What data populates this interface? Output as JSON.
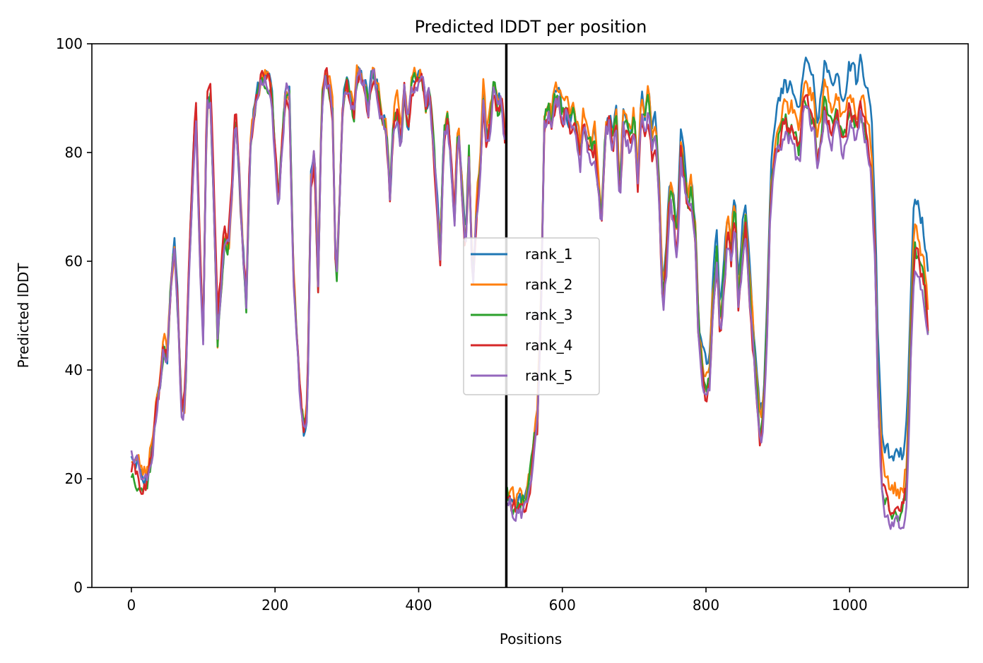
{
  "chart_data": {
    "type": "line",
    "title": "Predicted lDDT per position",
    "xlabel": "Positions",
    "ylabel": "Predicted lDDT",
    "xlim": [
      -55,
      1165
    ],
    "ylim": [
      0,
      100
    ],
    "xticks": [
      0,
      200,
      400,
      600,
      800,
      1000
    ],
    "yticks": [
      0,
      20,
      40,
      60,
      80,
      100
    ],
    "grid": false,
    "legend_position": "center",
    "vline_x": 522,
    "colors": {
      "rank_1": "#1f77b4",
      "rank_2": "#ff7f0e",
      "rank_3": "#2ca02c",
      "rank_4": "#d62728",
      "rank_5": "#9467bd",
      "vline": "#000000"
    },
    "base_profile": [
      [
        0,
        24
      ],
      [
        5,
        23
      ],
      [
        10,
        22
      ],
      [
        15,
        20
      ],
      [
        20,
        19
      ],
      [
        25,
        22
      ],
      [
        30,
        26
      ],
      [
        35,
        33
      ],
      [
        40,
        38
      ],
      [
        45,
        44
      ],
      [
        50,
        42
      ],
      [
        55,
        56
      ],
      [
        60,
        62
      ],
      [
        65,
        50
      ],
      [
        70,
        32
      ],
      [
        75,
        34
      ],
      [
        80,
        58
      ],
      [
        85,
        74
      ],
      [
        90,
        88
      ],
      [
        95,
        62
      ],
      [
        100,
        46
      ],
      [
        105,
        88
      ],
      [
        110,
        90
      ],
      [
        115,
        70
      ],
      [
        120,
        46
      ],
      [
        125,
        56
      ],
      [
        130,
        64
      ],
      [
        135,
        62
      ],
      [
        140,
        72
      ],
      [
        145,
        86
      ],
      [
        150,
        76
      ],
      [
        155,
        62
      ],
      [
        160,
        52
      ],
      [
        165,
        80
      ],
      [
        170,
        86
      ],
      [
        175,
        90
      ],
      [
        180,
        93
      ],
      [
        185,
        94
      ],
      [
        190,
        93
      ],
      [
        195,
        91
      ],
      [
        200,
        80
      ],
      [
        205,
        70
      ],
      [
        210,
        82
      ],
      [
        215,
        92
      ],
      [
        220,
        90
      ],
      [
        225,
        60
      ],
      [
        230,
        45
      ],
      [
        235,
        35
      ],
      [
        240,
        29
      ],
      [
        245,
        33
      ],
      [
        250,
        75
      ],
      [
        255,
        80
      ],
      [
        260,
        56
      ],
      [
        265,
        88
      ],
      [
        270,
        94
      ],
      [
        275,
        93
      ],
      [
        280,
        88
      ],
      [
        285,
        55
      ],
      [
        290,
        72
      ],
      [
        295,
        90
      ],
      [
        300,
        92
      ],
      [
        305,
        90
      ],
      [
        310,
        87
      ],
      [
        315,
        95
      ],
      [
        320,
        94
      ],
      [
        325,
        92
      ],
      [
        330,
        88
      ],
      [
        335,
        94
      ],
      [
        340,
        93
      ],
      [
        345,
        90
      ],
      [
        350,
        86
      ],
      [
        355,
        84
      ],
      [
        360,
        72
      ],
      [
        365,
        86
      ],
      [
        370,
        88
      ],
      [
        375,
        82
      ],
      [
        380,
        92
      ],
      [
        385,
        84
      ],
      [
        390,
        92
      ],
      [
        395,
        94
      ],
      [
        400,
        93
      ],
      [
        405,
        94
      ],
      [
        410,
        88
      ],
      [
        415,
        92
      ],
      [
        420,
        82
      ],
      [
        425,
        72
      ],
      [
        430,
        62
      ],
      [
        435,
        82
      ],
      [
        440,
        87
      ],
      [
        445,
        78
      ],
      [
        450,
        68
      ],
      [
        455,
        86
      ],
      [
        460,
        74
      ],
      [
        465,
        62
      ],
      [
        470,
        80
      ],
      [
        475,
        55
      ],
      [
        480,
        68
      ],
      [
        485,
        76
      ],
      [
        490,
        90
      ],
      [
        495,
        82
      ],
      [
        500,
        86
      ],
      [
        505,
        93
      ],
      [
        510,
        88
      ],
      [
        515,
        90
      ],
      [
        520,
        82
      ],
      [
        523,
        18
      ],
      [
        528,
        16
      ],
      [
        533,
        15
      ],
      [
        540,
        15
      ],
      [
        545,
        15
      ],
      [
        550,
        16
      ],
      [
        555,
        20
      ],
      [
        560,
        26
      ],
      [
        565,
        30
      ],
      [
        570,
        50
      ],
      [
        575,
        85
      ],
      [
        580,
        88
      ],
      [
        585,
        86
      ],
      [
        590,
        90
      ],
      [
        595,
        91
      ],
      [
        600,
        87
      ],
      [
        605,
        89
      ],
      [
        610,
        85
      ],
      [
        615,
        86
      ],
      [
        620,
        84
      ],
      [
        625,
        79
      ],
      [
        630,
        86
      ],
      [
        635,
        82
      ],
      [
        640,
        80
      ],
      [
        645,
        82
      ],
      [
        650,
        74
      ],
      [
        655,
        68
      ],
      [
        660,
        84
      ],
      [
        665,
        86
      ],
      [
        670,
        82
      ],
      [
        675,
        86
      ],
      [
        680,
        72
      ],
      [
        685,
        86
      ],
      [
        690,
        84
      ],
      [
        695,
        82
      ],
      [
        700,
        86
      ],
      [
        705,
        74
      ],
      [
        710,
        88
      ],
      [
        715,
        85
      ],
      [
        720,
        89
      ],
      [
        725,
        80
      ],
      [
        730,
        84
      ],
      [
        735,
        70
      ],
      [
        740,
        52
      ],
      [
        745,
        60
      ],
      [
        750,
        72
      ],
      [
        755,
        68
      ],
      [
        760,
        62
      ],
      [
        765,
        80
      ],
      [
        770,
        75
      ],
      [
        775,
        70
      ],
      [
        780,
        72
      ],
      [
        785,
        64
      ],
      [
        790,
        45
      ],
      [
        795,
        40
      ],
      [
        800,
        36
      ],
      [
        805,
        38
      ],
      [
        810,
        52
      ],
      [
        815,
        60
      ],
      [
        820,
        46
      ],
      [
        825,
        56
      ],
      [
        830,
        66
      ],
      [
        835,
        60
      ],
      [
        840,
        70
      ],
      [
        845,
        52
      ],
      [
        850,
        60
      ],
      [
        855,
        66
      ],
      [
        860,
        56
      ],
      [
        865,
        46
      ],
      [
        870,
        36
      ],
      [
        875,
        28
      ],
      [
        880,
        30
      ],
      [
        885,
        48
      ],
      [
        890,
        72
      ],
      [
        895,
        78
      ],
      [
        900,
        82
      ],
      [
        905,
        84
      ],
      [
        910,
        86
      ],
      [
        915,
        84
      ],
      [
        920,
        86
      ],
      [
        925,
        82
      ],
      [
        930,
        80
      ],
      [
        935,
        88
      ],
      [
        940,
        90
      ],
      [
        945,
        88
      ],
      [
        950,
        86
      ],
      [
        955,
        78
      ],
      [
        960,
        82
      ],
      [
        965,
        88
      ],
      [
        970,
        86
      ],
      [
        975,
        84
      ],
      [
        980,
        88
      ],
      [
        985,
        86
      ],
      [
        990,
        82
      ],
      [
        995,
        84
      ],
      [
        1000,
        88
      ],
      [
        1005,
        86
      ],
      [
        1010,
        84
      ],
      [
        1015,
        88
      ],
      [
        1020,
        86
      ],
      [
        1025,
        82
      ],
      [
        1030,
        78
      ],
      [
        1035,
        62
      ],
      [
        1040,
        34
      ],
      [
        1045,
        20
      ],
      [
        1050,
        16
      ],
      [
        1055,
        15
      ],
      [
        1060,
        14
      ],
      [
        1065,
        14
      ],
      [
        1070,
        14
      ],
      [
        1075,
        15
      ],
      [
        1080,
        20
      ],
      [
        1085,
        44
      ],
      [
        1090,
        62
      ],
      [
        1095,
        60
      ],
      [
        1100,
        58
      ],
      [
        1105,
        54
      ],
      [
        1110,
        46
      ]
    ],
    "series": [
      {
        "name": "rank_1",
        "noise_seed": 11,
        "offsets": [
          [
            0,
            1
          ],
          [
            600,
            0
          ],
          [
            1085,
            10
          ]
        ]
      },
      {
        "name": "rank_2",
        "noise_seed": 23,
        "offsets": [
          [
            0,
            0
          ],
          [
            30,
            3
          ],
          [
            60,
            0
          ],
          [
            640,
            2
          ],
          [
            1085,
            4
          ]
        ]
      },
      {
        "name": "rank_3",
        "noise_seed": 37,
        "offsets": [
          [
            0,
            -3
          ],
          [
            30,
            0
          ],
          [
            560,
            0
          ],
          [
            800,
            1
          ],
          [
            1085,
            0
          ]
        ]
      },
      {
        "name": "rank_4",
        "noise_seed": 41,
        "offsets": [
          [
            0,
            -2
          ],
          [
            120,
            3
          ],
          [
            200,
            0
          ],
          [
            640,
            -1
          ],
          [
            1085,
            0
          ]
        ]
      },
      {
        "name": "rank_5",
        "noise_seed": 53,
        "offsets": [
          [
            0,
            2
          ],
          [
            30,
            0
          ],
          [
            1085,
            -2
          ]
        ]
      }
    ]
  }
}
